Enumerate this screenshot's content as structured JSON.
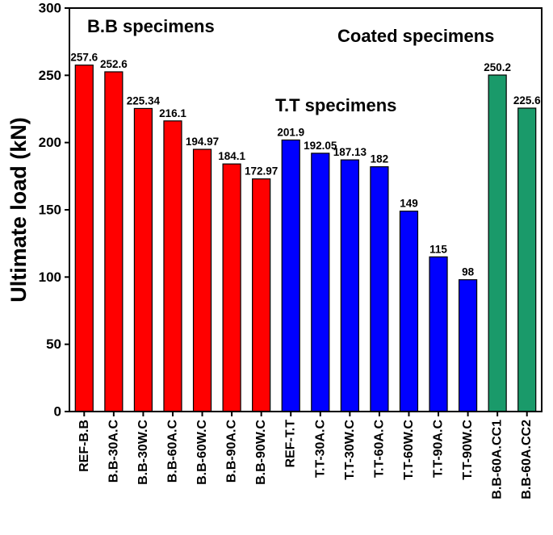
{
  "chart_data": {
    "type": "bar",
    "title": "",
    "xlabel": "",
    "ylabel": "Ultimate load (kN)",
    "ylim": [
      0,
      300
    ],
    "yticks": [
      0,
      50,
      100,
      150,
      200,
      250,
      300
    ],
    "grid": false,
    "categories": [
      "REF-B.B",
      "B.B-30A.C",
      "B.B-30W.C",
      "B.B-60A.C",
      "B.B-60W.C",
      "B.B-90A.C",
      "B.B-90W.C",
      "REF-T.T",
      "T.T-30A.C",
      "T.T-30W.C",
      "T.T-60A.C",
      "T.T-60W.C",
      "T.T-90A.C",
      "T.T-90W.C",
      "B.B-60A.CC1",
      "B.B-60A.CC2"
    ],
    "values": [
      257.6,
      252.6,
      225.34,
      216.1,
      194.97,
      184.1,
      172.97,
      201.9,
      192.05,
      187.13,
      182,
      149,
      115,
      98,
      250.2,
      225.6
    ],
    "value_labels": [
      "257.6",
      "252.6",
      "225.34",
      "216.1",
      "194.97",
      "184.1",
      "172.97",
      "201.9",
      "192.05",
      "187.13",
      "182",
      "149",
      "115",
      "98",
      "250.2",
      "225.6"
    ],
    "groups": [
      {
        "name": "B.B specimens",
        "color": "#ff0000",
        "start": 0,
        "end": 6
      },
      {
        "name": "T.T specimens",
        "color": "#0000ff",
        "start": 7,
        "end": 13
      },
      {
        "name": "Coated specimens",
        "color": "#1a9a6a",
        "start": 14,
        "end": 15
      }
    ],
    "annotations": [
      "B.B specimens",
      "T.T specimens",
      "Coated specimens"
    ]
  }
}
